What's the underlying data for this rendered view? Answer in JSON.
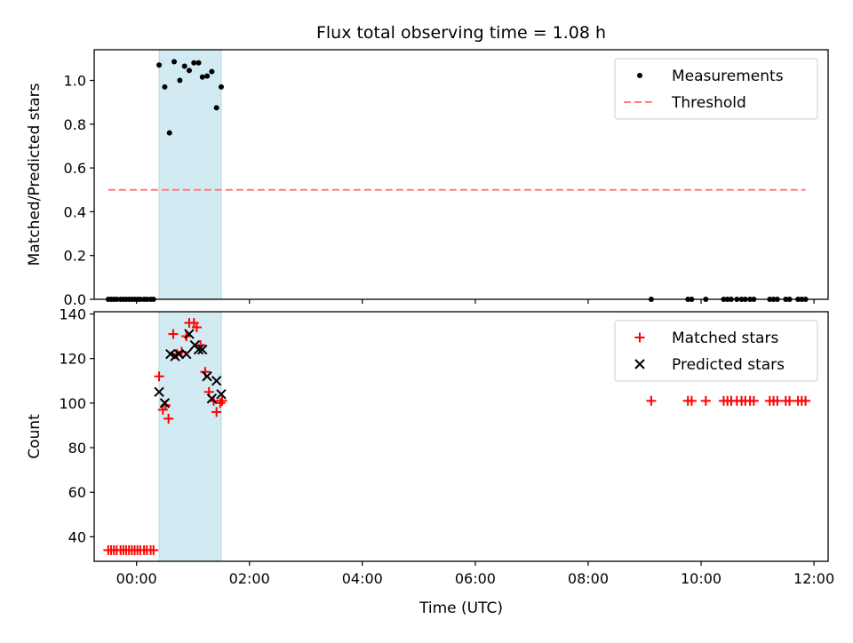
{
  "figure": {
    "title": "Flux total observing time = 1.08 h"
  },
  "chart_data": [
    {
      "type": "scatter",
      "ylabel": "Matched/Predicted stars",
      "xlabel": "",
      "xlim": [
        "-00:45",
        "12:15"
      ],
      "ylim": [
        0,
        1.14
      ],
      "yticks": [
        0.0,
        0.2,
        0.4,
        0.6,
        0.8,
        1.0
      ],
      "ytick_labels": [
        "0.0",
        "0.2",
        "0.4",
        "0.6",
        "0.8",
        "1.0"
      ],
      "xticks": [
        "00:00",
        "02:00",
        "04:00",
        "06:00",
        "08:00",
        "10:00",
        "12:00"
      ],
      "xtick_labels_shown": false,
      "shaded_region": {
        "x": [
          "00:24",
          "01:30"
        ],
        "color": "#add8e6"
      },
      "legend": {
        "placement": "top-right",
        "entries": [
          "Measurements",
          "Threshold"
        ]
      },
      "series": [
        {
          "name": "Measurements",
          "marker": "dot",
          "color": "#000000",
          "points": [
            [
              "-00:30",
              0.0
            ],
            [
              "-00:27",
              0.0
            ],
            [
              "-00:24",
              0.0
            ],
            [
              "-00:21",
              0.0
            ],
            [
              "-00:17",
              0.0
            ],
            [
              "-00:14",
              0.0
            ],
            [
              "-00:11",
              0.0
            ],
            [
              "-00:08",
              0.0
            ],
            [
              "-00:05",
              0.0
            ],
            [
              "-00:02",
              0.0
            ],
            [
              "00:01",
              0.0
            ],
            [
              "00:04",
              0.0
            ],
            [
              "00:08",
              0.0
            ],
            [
              "00:11",
              0.0
            ],
            [
              "00:15",
              0.0
            ],
            [
              "00:18",
              0.0
            ],
            [
              "00:24",
              1.07
            ],
            [
              "00:30",
              0.97
            ],
            [
              "00:35",
              0.76
            ],
            [
              "00:40",
              1.085
            ],
            [
              "00:46",
              1.0
            ],
            [
              "00:51",
              1.065
            ],
            [
              "00:56",
              1.045
            ],
            [
              "01:01",
              1.08
            ],
            [
              "01:06",
              1.08
            ],
            [
              "01:10",
              1.015
            ],
            [
              "01:15",
              1.02
            ],
            [
              "01:20",
              1.04
            ],
            [
              "01:25",
              0.875
            ],
            [
              "01:30",
              0.97
            ],
            [
              "09:07",
              0.0
            ],
            [
              "09:46",
              0.0
            ],
            [
              "09:50",
              0.0
            ],
            [
              "10:05",
              0.0
            ],
            [
              "10:24",
              0.0
            ],
            [
              "10:28",
              0.0
            ],
            [
              "10:32",
              0.0
            ],
            [
              "10:38",
              0.0
            ],
            [
              "10:43",
              0.0
            ],
            [
              "10:47",
              0.0
            ],
            [
              "10:52",
              0.0
            ],
            [
              "10:56",
              0.0
            ],
            [
              "11:13",
              0.0
            ],
            [
              "11:17",
              0.0
            ],
            [
              "11:21",
              0.0
            ],
            [
              "11:30",
              0.0
            ],
            [
              "11:34",
              0.0
            ],
            [
              "11:43",
              0.0
            ],
            [
              "11:47",
              0.0
            ],
            [
              "11:51",
              0.0
            ]
          ]
        },
        {
          "name": "Threshold",
          "style": "dashed",
          "color": "#ff7f7f",
          "points": [
            [
              "-00:30",
              0.5
            ],
            [
              "11:51",
              0.5
            ]
          ]
        }
      ]
    },
    {
      "type": "scatter",
      "ylabel": "Count",
      "xlabel": "Time (UTC)",
      "xlim": [
        "-00:45",
        "12:15"
      ],
      "ylim": [
        29,
        141
      ],
      "yticks": [
        40,
        60,
        80,
        100,
        120,
        140
      ],
      "ytick_labels": [
        "40",
        "60",
        "80",
        "100",
        "120",
        "140"
      ],
      "xticks": [
        "00:00",
        "02:00",
        "04:00",
        "06:00",
        "08:00",
        "10:00",
        "12:00"
      ],
      "xtick_labels": [
        "00:00",
        "02:00",
        "04:00",
        "06:00",
        "08:00",
        "10:00",
        "12:00"
      ],
      "shaded_region": {
        "x": [
          "00:24",
          "01:30"
        ],
        "color": "#add8e6"
      },
      "legend": {
        "placement": "top-right",
        "entries": [
          "Matched stars",
          "Predicted stars"
        ]
      },
      "series": [
        {
          "name": "Matched stars",
          "marker": "plus",
          "color": "#ff0000",
          "points": [
            [
              "-00:30",
              34
            ],
            [
              "-00:27",
              34
            ],
            [
              "-00:24",
              34
            ],
            [
              "-00:21",
              34
            ],
            [
              "-00:17",
              34
            ],
            [
              "-00:14",
              34
            ],
            [
              "-00:11",
              34
            ],
            [
              "-00:08",
              34
            ],
            [
              "-00:05",
              34
            ],
            [
              "-00:02",
              34
            ],
            [
              "00:01",
              34
            ],
            [
              "00:04",
              34
            ],
            [
              "00:08",
              34
            ],
            [
              "00:11",
              34
            ],
            [
              "00:15",
              34
            ],
            [
              "00:18",
              34
            ],
            [
              "00:24",
              112
            ],
            [
              "00:28",
              97
            ],
            [
              "00:31",
              99
            ],
            [
              "00:34",
              93
            ],
            [
              "00:39",
              131
            ],
            [
              "00:43",
              122
            ],
            [
              "00:48",
              123
            ],
            [
              "00:53",
              130
            ],
            [
              "00:56",
              136
            ],
            [
              "01:01",
              136
            ],
            [
              "01:04",
              134
            ],
            [
              "01:08",
              126
            ],
            [
              "01:13",
              114
            ],
            [
              "01:17",
              105
            ],
            [
              "01:22",
              101
            ],
            [
              "01:25",
              96
            ],
            [
              "01:29",
              100
            ],
            [
              "01:31",
              101
            ],
            [
              "09:07",
              101
            ],
            [
              "09:46",
              101
            ],
            [
              "09:50",
              101
            ],
            [
              "10:05",
              101
            ],
            [
              "10:24",
              101
            ],
            [
              "10:28",
              101
            ],
            [
              "10:32",
              101
            ],
            [
              "10:38",
              101
            ],
            [
              "10:43",
              101
            ],
            [
              "10:47",
              101
            ],
            [
              "10:52",
              101
            ],
            [
              "10:56",
              101
            ],
            [
              "11:13",
              101
            ],
            [
              "11:17",
              101
            ],
            [
              "11:21",
              101
            ],
            [
              "11:30",
              101
            ],
            [
              "11:34",
              101
            ],
            [
              "11:43",
              101
            ],
            [
              "11:47",
              101
            ],
            [
              "11:51",
              101
            ]
          ]
        },
        {
          "name": "Predicted stars",
          "marker": "x",
          "color": "#000000",
          "points": [
            [
              "00:24",
              105
            ],
            [
              "00:30",
              100
            ],
            [
              "00:36",
              122
            ],
            [
              "00:41",
              121
            ],
            [
              "00:45",
              122
            ],
            [
              "00:53",
              122
            ],
            [
              "00:56",
              131
            ],
            [
              "01:02",
              126
            ],
            [
              "01:06",
              124
            ],
            [
              "01:10",
              124
            ],
            [
              "01:15",
              112
            ],
            [
              "01:20",
              102
            ],
            [
              "01:25",
              110
            ],
            [
              "01:30",
              104
            ]
          ]
        }
      ]
    }
  ]
}
